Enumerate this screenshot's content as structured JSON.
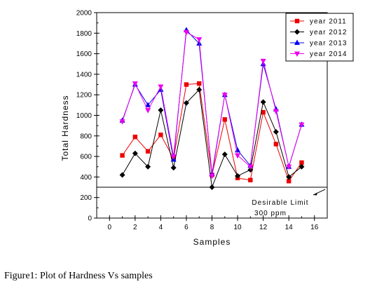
{
  "caption": "Figure1: Plot of Hardness Vs samples",
  "chart_data": {
    "type": "line",
    "xlabel": "Samples",
    "ylabel": "Total Hardness",
    "xlim": [
      -1,
      17
    ],
    "ylim": [
      0,
      2000
    ],
    "xticks": [
      0,
      2,
      4,
      6,
      8,
      10,
      12,
      14,
      16
    ],
    "yticks": [
      0,
      200,
      400,
      600,
      800,
      1000,
      1200,
      1400,
      1600,
      1800,
      2000
    ],
    "legend_position": "top-right",
    "x": [
      1,
      2,
      3,
      4,
      5,
      6,
      7,
      8,
      9,
      10,
      11,
      12,
      13,
      14,
      15
    ],
    "series": [
      {
        "name": "year 2011",
        "color": "#ee0000",
        "marker": "square",
        "values": [
          610,
          790,
          650,
          810,
          580,
          1300,
          1310,
          420,
          960,
          390,
          370,
          1030,
          720,
          360,
          540
        ]
      },
      {
        "name": "year 2012",
        "color": "#000000",
        "marker": "diamond",
        "values": [
          420,
          630,
          500,
          1050,
          490,
          1120,
          1250,
          300,
          620,
          410,
          470,
          1130,
          840,
          400,
          500
        ]
      },
      {
        "name": "year 2013",
        "color": "#0000ee",
        "marker": "triangle-up",
        "values": [
          950,
          1300,
          1100,
          1250,
          570,
          1830,
          1700,
          430,
          1200,
          660,
          510,
          1500,
          1060,
          500,
          910
        ]
      },
      {
        "name": "year 2014",
        "color": "#ee00ee",
        "marker": "triangle-down",
        "values": [
          940,
          1310,
          1050,
          1280,
          600,
          1810,
          1740,
          410,
          1200,
          610,
          500,
          1530,
          1040,
          500,
          910
        ]
      }
    ],
    "reference_line": {
      "value": 300,
      "label_line1": "Desirable Limit",
      "label_line2": "300 ppm"
    }
  }
}
